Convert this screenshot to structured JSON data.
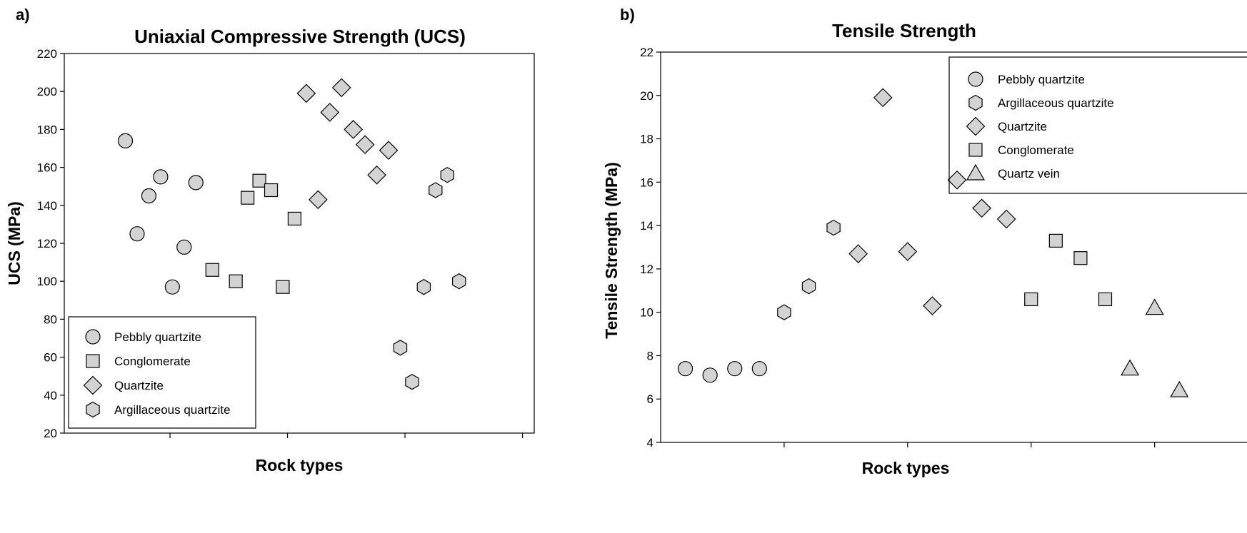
{
  "chart_data": [
    {
      "panel_label": "a)",
      "type": "scatter",
      "title": "Uniaxial Compressive Strength (UCS)",
      "xlabel": "Rock types",
      "ylabel": "UCS (MPa)",
      "ylim": [
        20,
        220
      ],
      "yticks": [
        20,
        40,
        60,
        80,
        100,
        120,
        140,
        160,
        180,
        200,
        220
      ],
      "xlim": [
        0,
        20
      ],
      "xticks": [
        4.5,
        9.5,
        14.5,
        19.5
      ],
      "legend": {
        "placement": "bottom-left",
        "order": [
          "Pebbly quartzite",
          "Conglomerate",
          "Quartzite",
          "Argillaceous quartzite"
        ]
      },
      "series": [
        {
          "name": "Pebbly quartzite",
          "marker": "circle",
          "x": [
            2.6,
            3.1,
            3.6,
            4.1,
            4.6,
            5.1,
            5.6
          ],
          "y": [
            174,
            125,
            145,
            155,
            97,
            118,
            152
          ]
        },
        {
          "name": "Conglomerate",
          "marker": "square",
          "x": [
            6.3,
            7.3,
            7.8,
            8.3,
            8.8,
            9.3,
            9.8
          ],
          "y": [
            106,
            100,
            144,
            153,
            148,
            97,
            133
          ]
        },
        {
          "name": "Quartzite",
          "marker": "diamond",
          "x": [
            10.3,
            10.8,
            11.3,
            11.8,
            12.3,
            12.8,
            13.3,
            13.8
          ],
          "y": [
            199,
            143,
            189,
            202,
            180,
            172,
            156,
            169
          ]
        },
        {
          "name": "Argillaceous quartzite",
          "marker": "hexagon",
          "x": [
            14.3,
            14.8,
            15.3,
            15.8,
            16.3,
            16.8
          ],
          "y": [
            65,
            47,
            97,
            148,
            156,
            100
          ]
        }
      ]
    },
    {
      "panel_label": "b)",
      "type": "scatter",
      "title": "Tensile Strength",
      "xlabel": "Rock types",
      "ylabel": "Tensile Strength (MPa)",
      "ylim": [
        4,
        22
      ],
      "yticks": [
        4,
        6,
        8,
        10,
        12,
        14,
        16,
        18,
        20,
        22
      ],
      "xlim": [
        0,
        24
      ],
      "xticks": [
        5,
        10,
        15,
        20
      ],
      "legend": {
        "placement": "top-right",
        "order": [
          "Pebbly quartzite",
          "Argillaceous quartzite",
          "Quartzite",
          "Conglomerate",
          "Quartz vein"
        ]
      },
      "series": [
        {
          "name": "Pebbly quartzite",
          "marker": "circle",
          "x": [
            1,
            2,
            3,
            4
          ],
          "y": [
            7.4,
            7.1,
            7.4,
            7.4
          ]
        },
        {
          "name": "Argillaceous quartzite",
          "marker": "hexagon",
          "x": [
            5,
            6,
            7
          ],
          "y": [
            10.0,
            11.2,
            13.9
          ]
        },
        {
          "name": "Quartzite",
          "marker": "diamond",
          "x": [
            8,
            9,
            10,
            11,
            12,
            13,
            14
          ],
          "y": [
            12.7,
            19.9,
            12.8,
            10.3,
            16.1,
            14.8,
            14.3
          ]
        },
        {
          "name": "Conglomerate",
          "marker": "square",
          "x": [
            15,
            16,
            17,
            18
          ],
          "y": [
            10.6,
            13.3,
            12.5,
            10.6
          ]
        },
        {
          "name": "Quartz vein",
          "marker": "triangle",
          "x": [
            19,
            20,
            21
          ],
          "y": [
            7.4,
            10.2,
            6.4
          ]
        }
      ]
    }
  ]
}
